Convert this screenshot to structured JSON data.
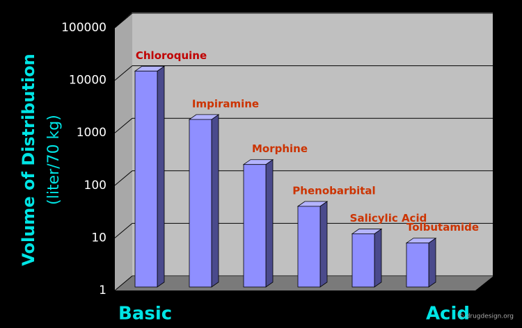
{
  "chart_data": {
    "type": "bar3d",
    "log": true,
    "y_label_lines": [
      "Volume of Distribution",
      "(liter/70 kg)"
    ],
    "categories": [
      "Chloroquine",
      "Impiramine",
      "Morphine",
      "Phenobarbital",
      "Salicylic Acid",
      "Tolbutamide"
    ],
    "values": [
      15000,
      1800,
      250,
      40,
      12,
      8
    ],
    "color": "#8f8fff",
    "ylim": [
      1,
      100000
    ],
    "yticks": [
      1,
      10,
      100,
      1000,
      10000,
      100000
    ],
    "grid": true,
    "x_ends": [
      "Basic",
      "Acid"
    ],
    "watermark": "© drugdesign.org"
  }
}
